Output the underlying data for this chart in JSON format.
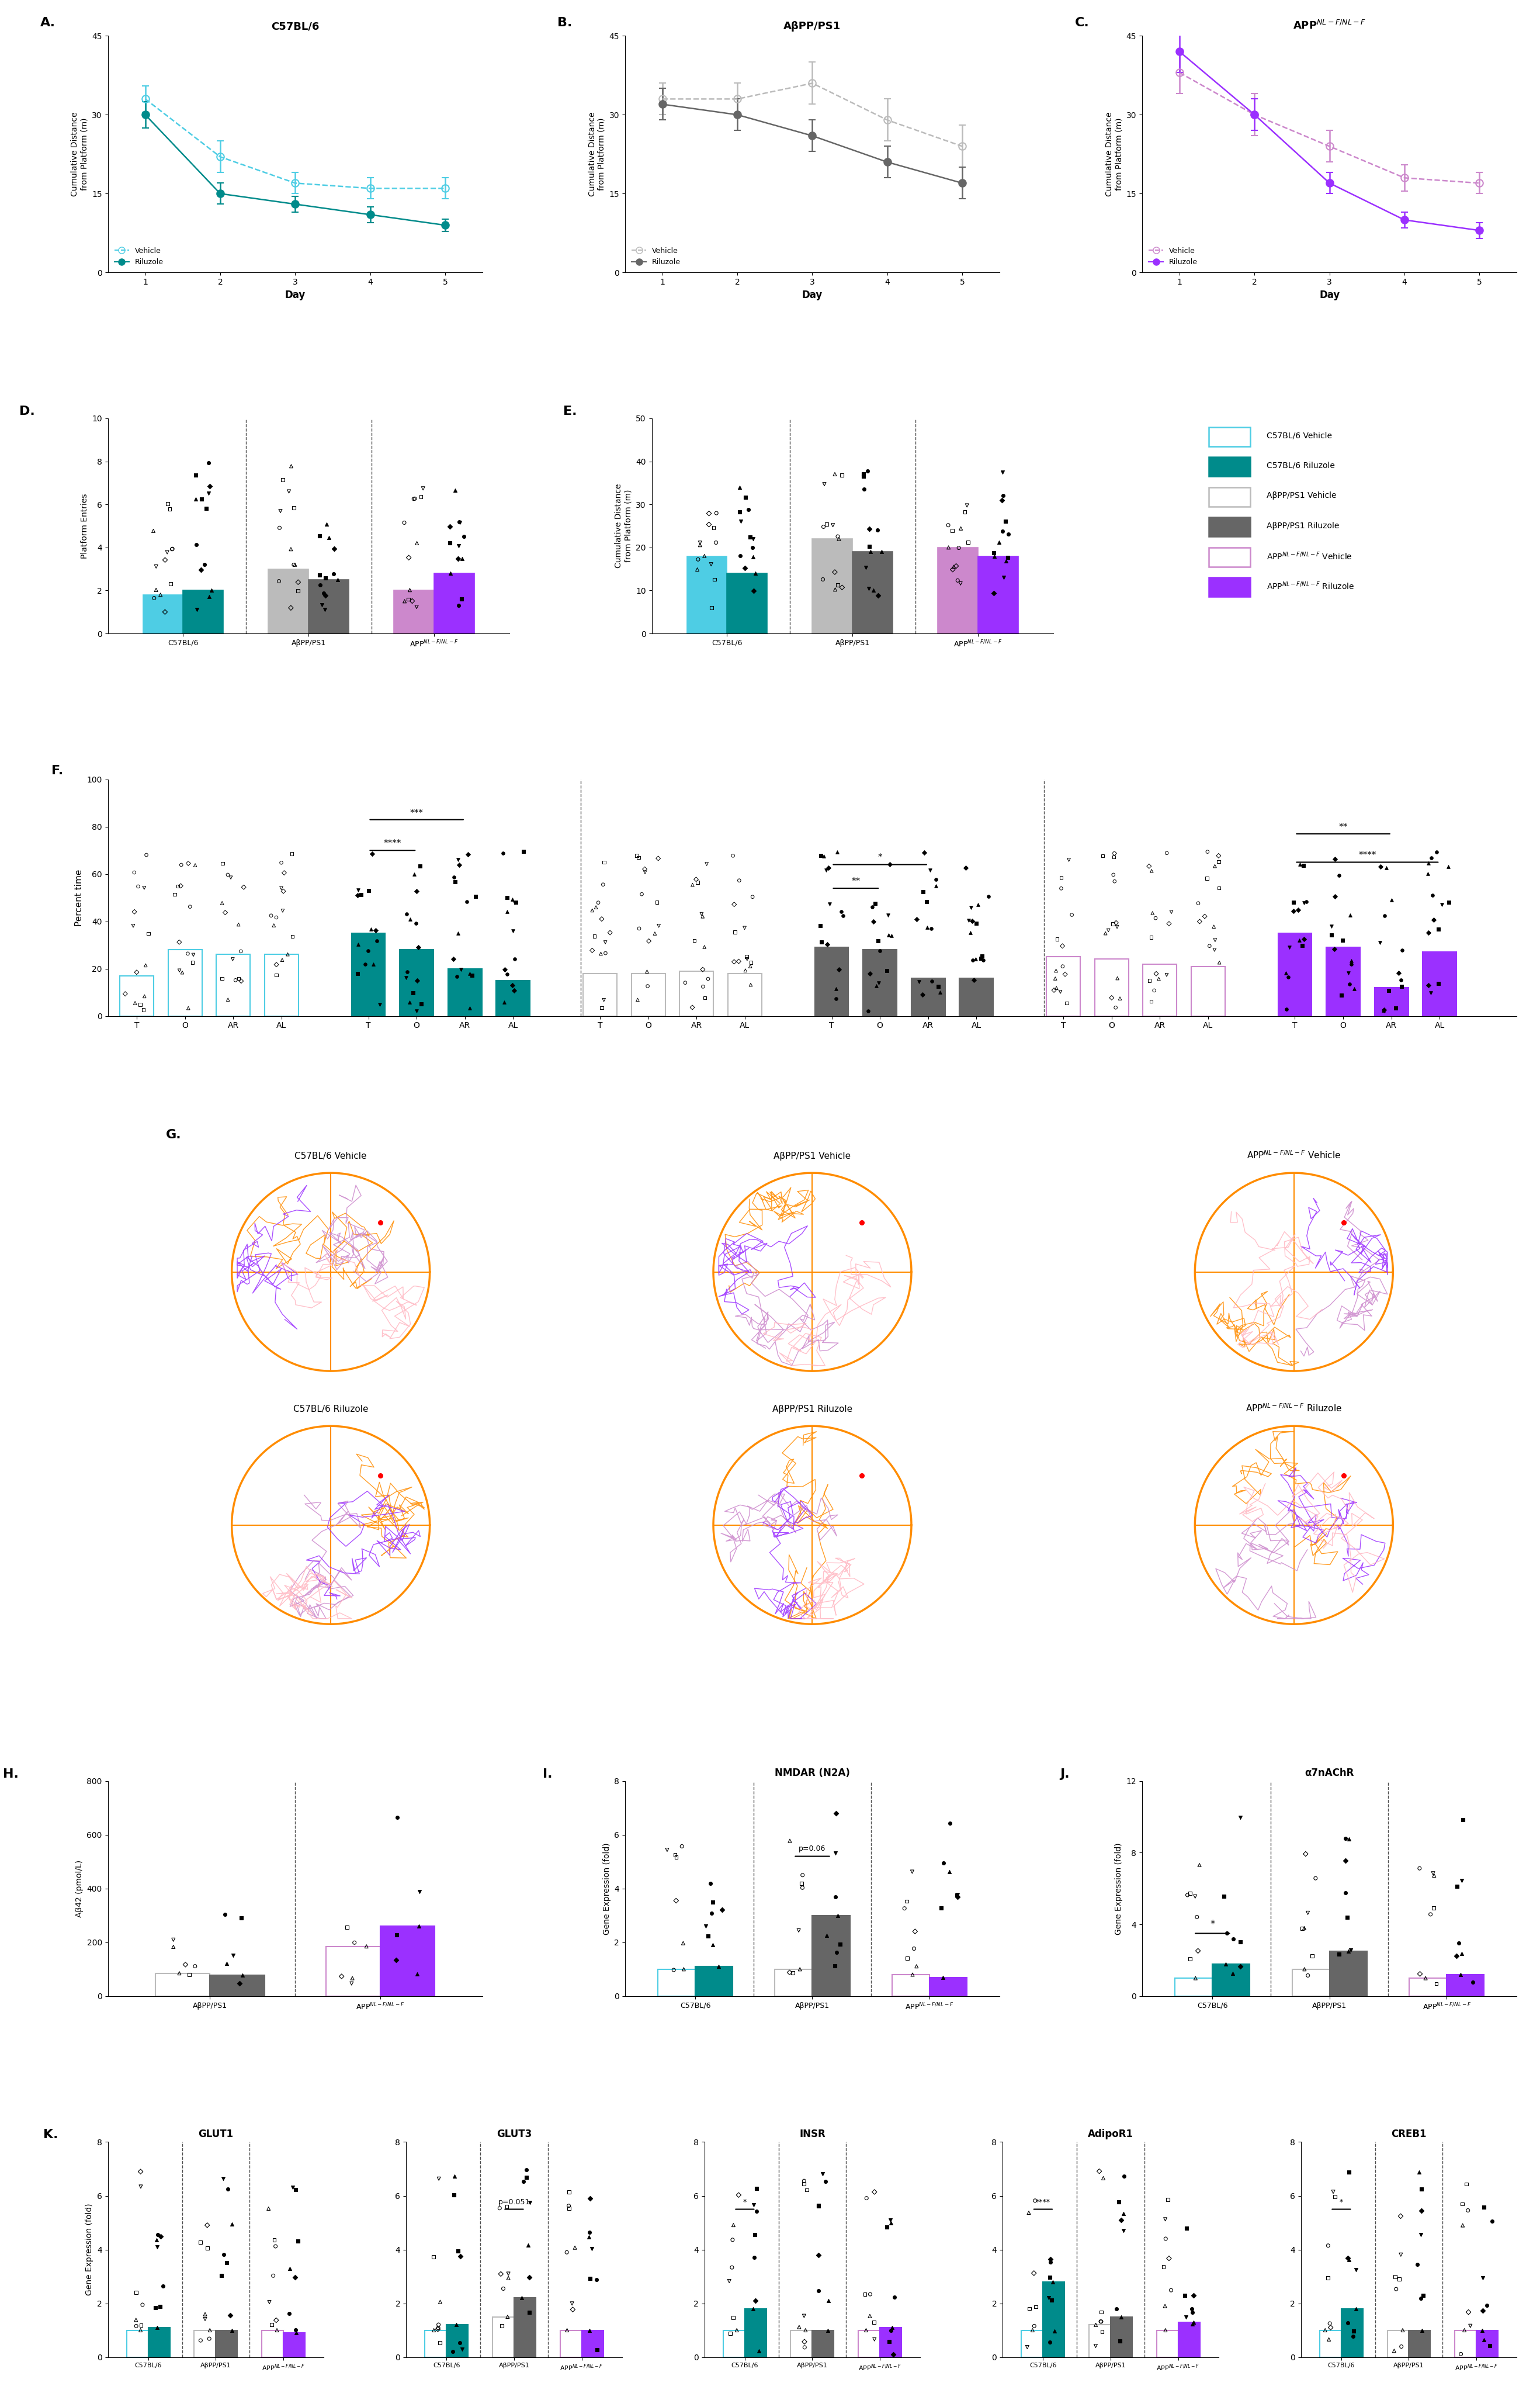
{
  "panel_A": {
    "title": "C57BL/6",
    "xlabel": "Day",
    "ylabel": "Cumulative Distance\nfrom Platform (m)",
    "days": [
      1,
      2,
      3,
      4,
      5
    ],
    "vehicle_mean": [
      33,
      22,
      17,
      16,
      16
    ],
    "vehicle_sem": [
      2.5,
      3,
      2,
      2,
      2
    ],
    "riluzole_mean": [
      30,
      15,
      13,
      11,
      9
    ],
    "riluzole_sem": [
      2.5,
      2,
      1.5,
      1.5,
      1.2
    ],
    "ylim": [
      0,
      45
    ],
    "yticks": [
      0,
      15,
      30,
      45
    ]
  },
  "panel_B": {
    "title": "AβPP/PS1",
    "xlabel": "Day",
    "ylabel": "Cumulative Distance\nfrom Platform (m)",
    "days": [
      1,
      2,
      3,
      4,
      5
    ],
    "vehicle_mean": [
      33,
      33,
      36,
      29,
      24
    ],
    "vehicle_sem": [
      3,
      3,
      4,
      4,
      4
    ],
    "riluzole_mean": [
      32,
      30,
      26,
      21,
      17
    ],
    "riluzole_sem": [
      3,
      3,
      3,
      3,
      3
    ],
    "ylim": [
      0,
      45
    ],
    "yticks": [
      0,
      15,
      30,
      45
    ]
  },
  "panel_C": {
    "title": "APP$^{NL-F/NL-F}$",
    "xlabel": "Day",
    "ylabel": "Cumulative Distance\nfrom Platform (m)",
    "days": [
      1,
      2,
      3,
      4,
      5
    ],
    "vehicle_mean": [
      38,
      30,
      24,
      18,
      17
    ],
    "vehicle_sem": [
      4,
      4,
      3,
      2.5,
      2
    ],
    "riluzole_mean": [
      42,
      30,
      17,
      10,
      8
    ],
    "riluzole_sem": [
      4,
      3,
      2,
      1.5,
      1.5
    ],
    "ylim": [
      0,
      45
    ],
    "yticks": [
      0,
      15,
      30,
      45
    ]
  },
  "panel_D": {
    "ylabel": "Platform Entries",
    "ylim": [
      0,
      10
    ],
    "yticks": [
      0,
      2,
      4,
      6,
      8,
      10
    ]
  },
  "panel_E": {
    "ylabel": "Cumulative Distance\nfrom Platform (m)",
    "ylim": [
      0,
      50
    ],
    "yticks": [
      0,
      10,
      20,
      30,
      40,
      50
    ]
  },
  "panel_F": {
    "ylabel": "Percent time",
    "ylim": [
      0,
      100
    ],
    "yticks": [
      0,
      20,
      40,
      60,
      80,
      100
    ]
  },
  "panel_H": {
    "ylabel": "Aβ42 (pmol/L)",
    "ylim": [
      0,
      800
    ],
    "yticks": [
      0,
      200,
      400,
      600,
      800
    ]
  },
  "panel_I": {
    "title": "NMDAR (N2A)",
    "ylabel": "Gene Expression (fold)",
    "ylim": [
      0,
      8
    ],
    "yticks": [
      0,
      2,
      4,
      6,
      8
    ]
  },
  "panel_J": {
    "title": "α7nAChR",
    "ylabel": "Gene Expression (fold)",
    "ylim": [
      0,
      12
    ],
    "yticks": [
      0,
      4,
      8,
      12
    ]
  },
  "panel_K": {
    "ylabel": "Gene Expression (fold)",
    "ylim": [
      0,
      8
    ],
    "yticks": [
      0,
      2,
      4,
      6,
      8
    ],
    "genes": [
      "GLUT1",
      "GLUT3",
      "INSR",
      "AdipoR1",
      "CREB1"
    ]
  },
  "colors": {
    "teal_v": "#4ECDE4",
    "teal_r": "#008B8B",
    "gray_v": "#BBBBBB",
    "gray_r": "#666666",
    "purp_v": "#CC88CC",
    "purp_r": "#9B30FF"
  },
  "legend": {
    "C57BL6_Vehicle": {
      "color": "#4ECDE4",
      "filled": false,
      "label": "C57BL/6 Vehicle"
    },
    "C57BL6_Riluzole": {
      "color": "#008B8B",
      "filled": true,
      "label": "C57BL/6 Riluzole"
    },
    "AbPP_Vehicle": {
      "color": "#BBBBBB",
      "filled": false,
      "label": "AβPP/PS1 Vehicle"
    },
    "AbPP_Riluzole": {
      "color": "#666666",
      "filled": true,
      "label": "AβPP/PS1 Riluzole"
    },
    "APP_Vehicle": {
      "color": "#CC88CC",
      "filled": false,
      "label": "APP$^{NL-F/NL-F}$ Vehicle"
    },
    "APP_Riluzole": {
      "color": "#9B30FF",
      "filled": true,
      "label": "APP$^{NL-F/NL-F}$ Riluzole"
    }
  }
}
